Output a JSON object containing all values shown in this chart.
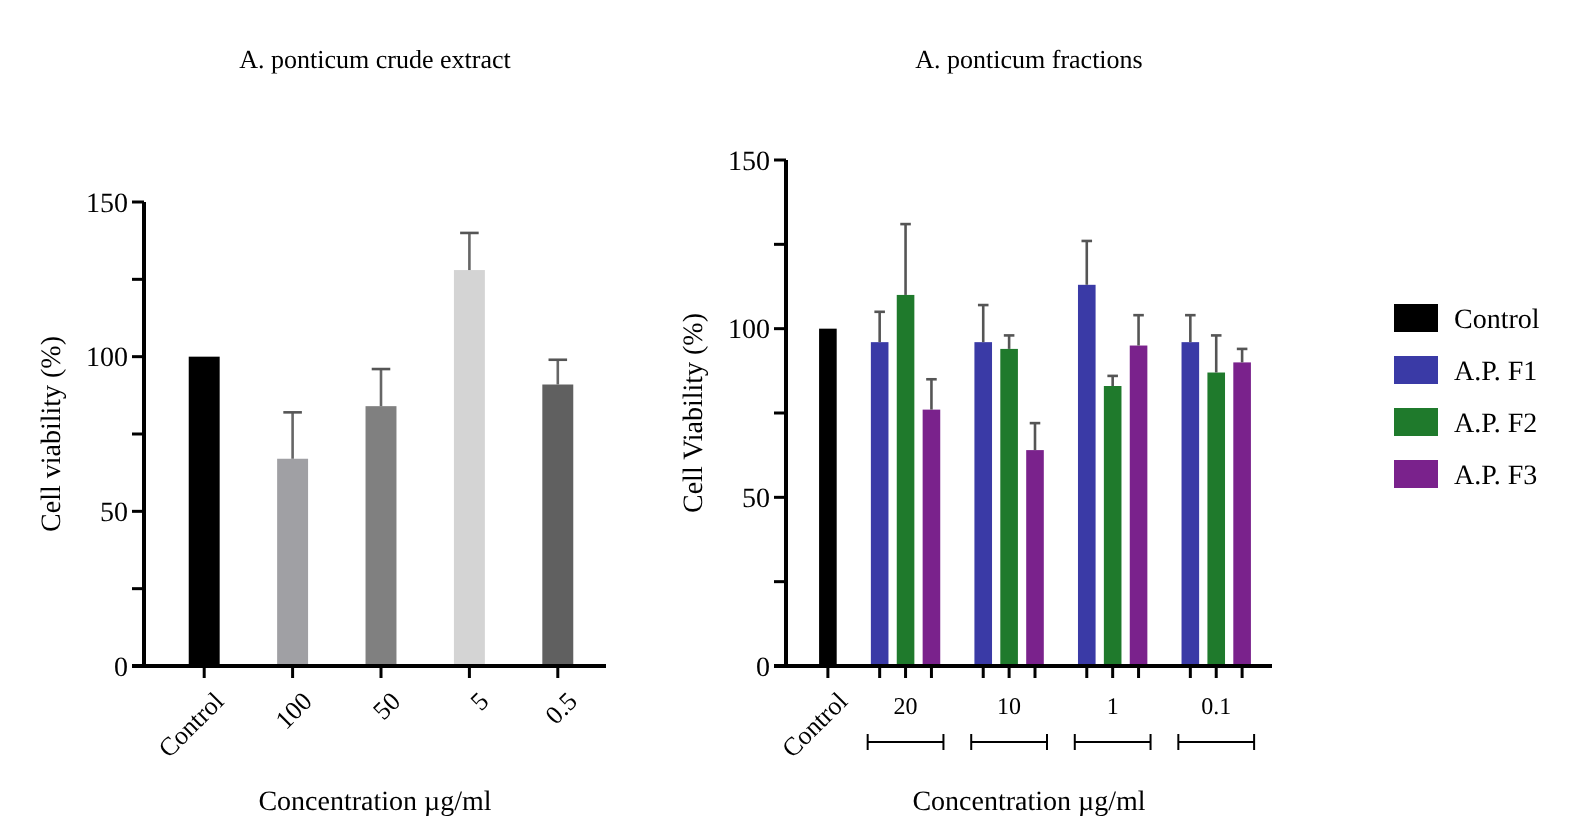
{
  "chart_data": [
    {
      "type": "bar",
      "title": "A. ponticum crude extract",
      "xlabel": "Concentration µg/ml",
      "ylabel": "Cell viability (%)",
      "categories": [
        "Control",
        "100",
        "50",
        "5",
        "0.5"
      ],
      "values": [
        100,
        67,
        84,
        128,
        91
      ],
      "errors": [
        null,
        [
          67,
          82
        ],
        [
          84,
          96
        ],
        [
          128,
          140
        ],
        [
          91,
          99
        ]
      ],
      "colors": [
        "#000000",
        "#a0a0a4",
        "#808080",
        "#d4d4d4",
        "#606060"
      ],
      "ylim": [
        0,
        150
      ],
      "yticks": [
        0,
        {
          "value": 25,
          "label": null
        },
        50,
        {
          "value": 75,
          "label": null
        },
        100,
        {
          "value": 125,
          "label": null
        },
        150
      ],
      "grid": false
    },
    {
      "type": "bar",
      "title": "A. ponticum fractions",
      "xlabel": "Concentration µg/ml",
      "ylabel": "Cell Viability (%)",
      "categories": [
        "Control",
        "20",
        "10",
        "1",
        "0.1"
      ],
      "series": [
        {
          "name": "Control",
          "color": "#000000",
          "values": [
            100,
            null,
            null,
            null,
            null
          ],
          "errors": [
            null,
            null,
            null,
            null,
            null
          ]
        },
        {
          "name": "A.P. F1",
          "color": "#3a3aa6",
          "values": [
            null,
            96,
            96,
            113,
            96
          ],
          "errors": [
            null,
            [
              96,
              105
            ],
            [
              96,
              107
            ],
            [
              113,
              126
            ],
            [
              96,
              104
            ]
          ]
        },
        {
          "name": "A.P. F2",
          "color": "#1f7a2c",
          "values": [
            null,
            110,
            94,
            83,
            87
          ],
          "errors": [
            null,
            [
              110,
              131
            ],
            [
              94,
              98
            ],
            [
              83,
              86
            ],
            [
              87,
              98
            ]
          ]
        },
        {
          "name": "A.P. F3",
          "color": "#7a228c",
          "values": [
            null,
            76,
            64,
            95,
            90
          ],
          "errors": [
            null,
            [
              76,
              85
            ],
            [
              64,
              72
            ],
            [
              95,
              104
            ],
            [
              90,
              94
            ]
          ]
        }
      ],
      "ylim": [
        0,
        150
      ],
      "yticks": [
        0,
        {
          "value": 25,
          "label": null
        },
        50,
        {
          "value": 75,
          "label": null
        },
        100,
        {
          "value": 125,
          "label": null
        },
        150
      ],
      "grid": false,
      "legend": "right"
    }
  ]
}
